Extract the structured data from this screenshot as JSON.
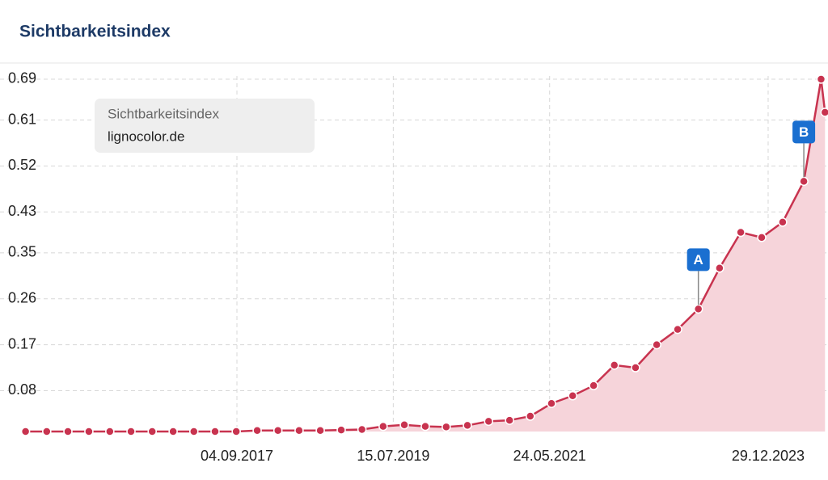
{
  "chart_data": {
    "type": "area",
    "title": "Sichtbarkeitsindex",
    "legend_title": "Sichtbarkeitsindex",
    "series": [
      {
        "name": "lignocolor.de",
        "color": "#c8334f",
        "fill": "#f6d4da",
        "x": [
          "01.03.2015",
          "01.06.2015",
          "01.09.2015",
          "01.12.2015",
          "01.03.2016",
          "01.06.2016",
          "01.09.2016",
          "01.12.2016",
          "01.03.2017",
          "01.06.2017",
          "01.09.2017",
          "01.12.2017",
          "01.03.2018",
          "01.06.2018",
          "01.09.2018",
          "01.12.2018",
          "01.03.2019",
          "01.06.2019",
          "01.09.2019",
          "01.12.2019",
          "01.03.2020",
          "01.06.2020",
          "01.09.2020",
          "01.12.2020",
          "01.03.2021",
          "01.06.2021",
          "01.09.2021",
          "01.12.2021",
          "01.03.2022",
          "01.06.2022",
          "01.09.2022",
          "01.12.2022",
          "01.03.2023",
          "01.06.2023",
          "01.09.2023",
          "01.12.2023",
          "01.03.2024",
          "01.06.2024",
          "15.08.2024",
          "01.09.2024"
        ],
        "values": [
          0,
          0,
          0,
          0,
          0,
          0,
          0,
          0,
          0,
          0,
          0,
          0.002,
          0.002,
          0.002,
          0.002,
          0.003,
          0.004,
          0.01,
          0.013,
          0.01,
          0.009,
          0.012,
          0.02,
          0.022,
          0.03,
          0.055,
          0.07,
          0.09,
          0.13,
          0.125,
          0.17,
          0.2,
          0.24,
          0.32,
          0.39,
          0.38,
          0.41,
          0.49,
          0.69,
          0.625
        ]
      }
    ],
    "annotations": [
      {
        "label": "A",
        "x": "01.03.2023"
      },
      {
        "label": "B",
        "x": "01.06.2024"
      }
    ],
    "xlim": [
      "10.11.2014",
      "14.09.2024"
    ],
    "xticks": [
      "04.09.2017",
      "15.07.2019",
      "24.05.2021",
      "29.12.2023"
    ],
    "ylim": [
      0,
      0.72
    ],
    "yticks": [
      0.08,
      0.17,
      0.26,
      0.35,
      0.43,
      0.52,
      0.61,
      0.69
    ],
    "grid": true
  }
}
